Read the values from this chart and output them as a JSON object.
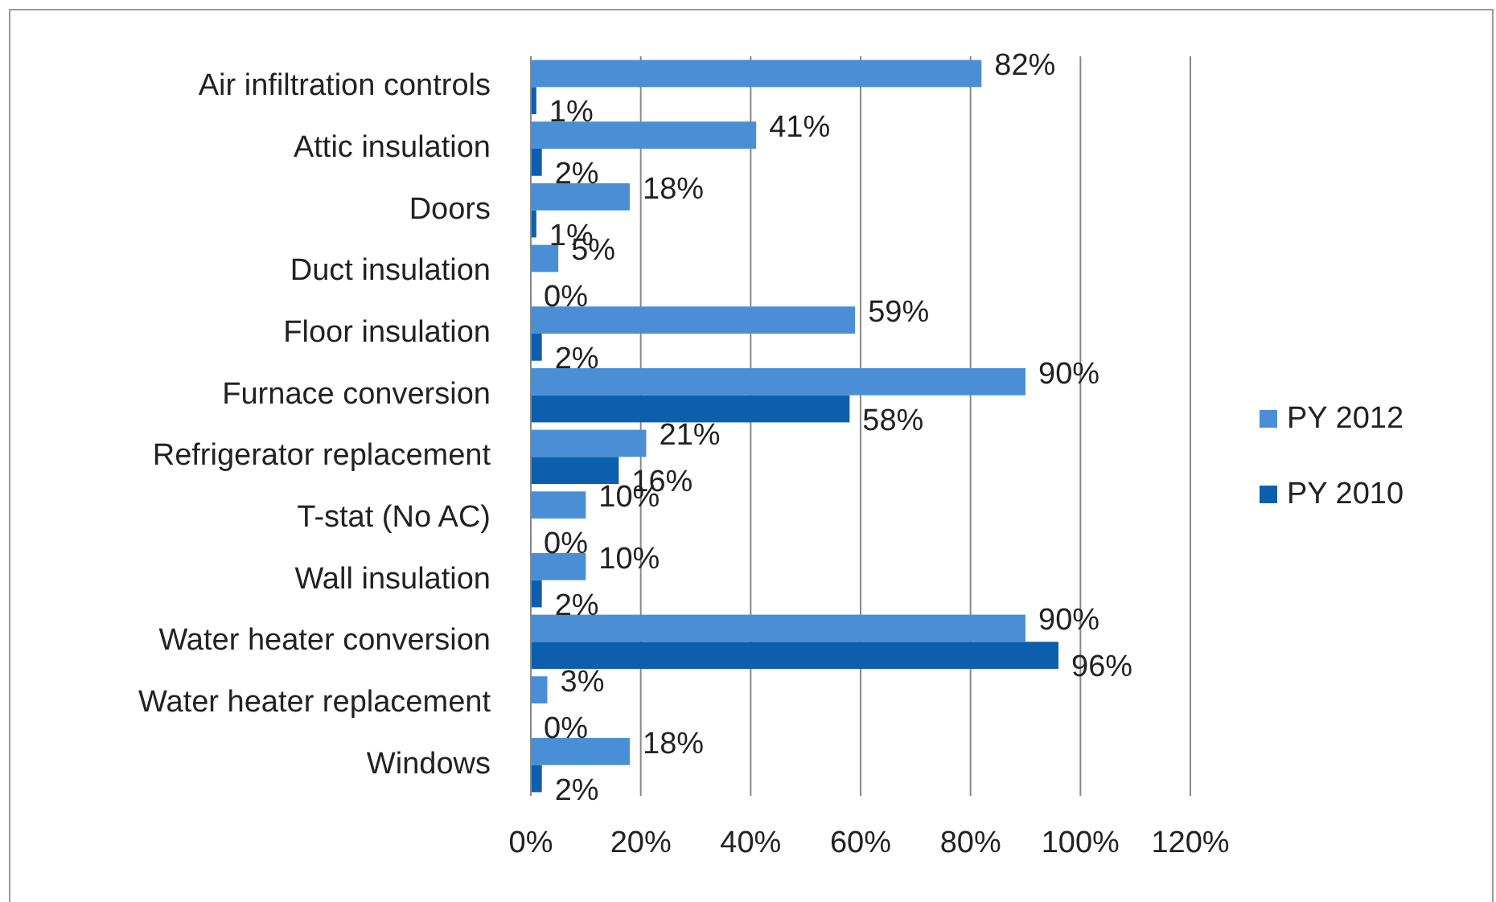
{
  "chart_data": {
    "type": "bar",
    "orientation": "horizontal",
    "categories": [
      "Air infiltration controls",
      "Attic insulation",
      "Doors",
      "Duct insulation",
      "Floor insulation",
      "Furnace conversion",
      "Refrigerator replacement",
      "T-stat (No AC)",
      "Wall insulation",
      "Water heater conversion",
      "Water heater replacement",
      "Windows"
    ],
    "series": [
      {
        "name": "PY 2012",
        "color": "#4a8fd6",
        "values": [
          82,
          41,
          18,
          5,
          59,
          90,
          21,
          10,
          10,
          90,
          3,
          18
        ],
        "value_labels": [
          "82%",
          "41%",
          "18%",
          "5%",
          "59%",
          "90%",
          "21%",
          "10%",
          "10%",
          "90%",
          "3%",
          "18%"
        ]
      },
      {
        "name": "PY 2010",
        "color": "#0d5fae",
        "values": [
          1,
          2,
          1,
          0,
          2,
          58,
          16,
          0,
          2,
          96,
          0,
          2
        ],
        "value_labels": [
          "1%",
          "2%",
          "1%",
          "0%",
          "2%",
          "58%",
          "16%",
          "0%",
          "2%",
          "96%",
          "0%",
          "2%"
        ]
      }
    ],
    "xlim": [
      0,
      120
    ],
    "xticks": [
      {
        "value": 0,
        "label": "0%"
      },
      {
        "value": 20,
        "label": "20%"
      },
      {
        "value": 40,
        "label": "40%"
      },
      {
        "value": 60,
        "label": "60%"
      },
      {
        "value": 80,
        "label": "80%"
      },
      {
        "value": 100,
        "label": "100%"
      },
      {
        "value": 120,
        "label": "120%"
      }
    ],
    "grid": "x",
    "legend": "right"
  }
}
